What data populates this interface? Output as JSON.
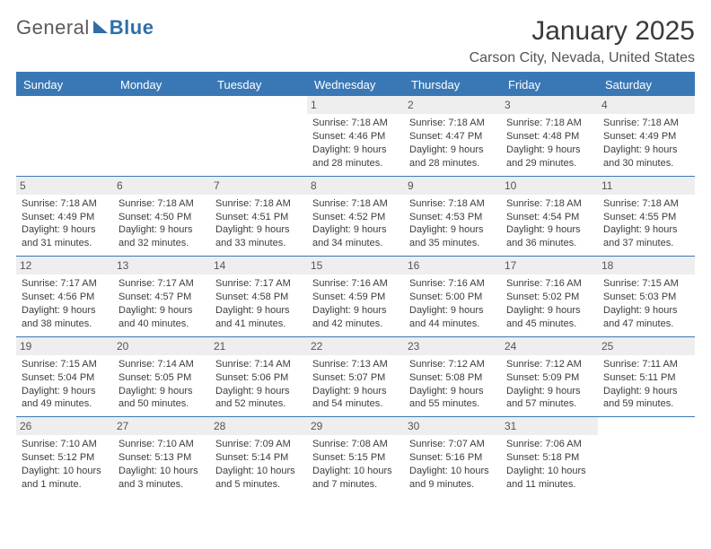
{
  "logo": {
    "part_a": "General",
    "part_b": "Blue"
  },
  "title": "January 2025",
  "location": "Carson City, Nevada, United States",
  "colors": {
    "header_bg": "#3a78b5",
    "header_text": "#ffffff",
    "daynum_bg": "#eeeeee",
    "rule": "#3a78b5",
    "text": "#3c3c3c",
    "logo_gray": "#5a5a5a",
    "logo_blue": "#2f6fa8"
  },
  "day_headers": [
    "Sunday",
    "Monday",
    "Tuesday",
    "Wednesday",
    "Thursday",
    "Friday",
    "Saturday"
  ],
  "weeks": [
    [
      {
        "num": "",
        "lines": []
      },
      {
        "num": "",
        "lines": []
      },
      {
        "num": "",
        "lines": []
      },
      {
        "num": "1",
        "lines": [
          "Sunrise: 7:18 AM",
          "Sunset: 4:46 PM",
          "Daylight: 9 hours and 28 minutes."
        ]
      },
      {
        "num": "2",
        "lines": [
          "Sunrise: 7:18 AM",
          "Sunset: 4:47 PM",
          "Daylight: 9 hours and 28 minutes."
        ]
      },
      {
        "num": "3",
        "lines": [
          "Sunrise: 7:18 AM",
          "Sunset: 4:48 PM",
          "Daylight: 9 hours and 29 minutes."
        ]
      },
      {
        "num": "4",
        "lines": [
          "Sunrise: 7:18 AM",
          "Sunset: 4:49 PM",
          "Daylight: 9 hours and 30 minutes."
        ]
      }
    ],
    [
      {
        "num": "5",
        "lines": [
          "Sunrise: 7:18 AM",
          "Sunset: 4:49 PM",
          "Daylight: 9 hours and 31 minutes."
        ]
      },
      {
        "num": "6",
        "lines": [
          "Sunrise: 7:18 AM",
          "Sunset: 4:50 PM",
          "Daylight: 9 hours and 32 minutes."
        ]
      },
      {
        "num": "7",
        "lines": [
          "Sunrise: 7:18 AM",
          "Sunset: 4:51 PM",
          "Daylight: 9 hours and 33 minutes."
        ]
      },
      {
        "num": "8",
        "lines": [
          "Sunrise: 7:18 AM",
          "Sunset: 4:52 PM",
          "Daylight: 9 hours and 34 minutes."
        ]
      },
      {
        "num": "9",
        "lines": [
          "Sunrise: 7:18 AM",
          "Sunset: 4:53 PM",
          "Daylight: 9 hours and 35 minutes."
        ]
      },
      {
        "num": "10",
        "lines": [
          "Sunrise: 7:18 AM",
          "Sunset: 4:54 PM",
          "Daylight: 9 hours and 36 minutes."
        ]
      },
      {
        "num": "11",
        "lines": [
          "Sunrise: 7:18 AM",
          "Sunset: 4:55 PM",
          "Daylight: 9 hours and 37 minutes."
        ]
      }
    ],
    [
      {
        "num": "12",
        "lines": [
          "Sunrise: 7:17 AM",
          "Sunset: 4:56 PM",
          "Daylight: 9 hours and 38 minutes."
        ]
      },
      {
        "num": "13",
        "lines": [
          "Sunrise: 7:17 AM",
          "Sunset: 4:57 PM",
          "Daylight: 9 hours and 40 minutes."
        ]
      },
      {
        "num": "14",
        "lines": [
          "Sunrise: 7:17 AM",
          "Sunset: 4:58 PM",
          "Daylight: 9 hours and 41 minutes."
        ]
      },
      {
        "num": "15",
        "lines": [
          "Sunrise: 7:16 AM",
          "Sunset: 4:59 PM",
          "Daylight: 9 hours and 42 minutes."
        ]
      },
      {
        "num": "16",
        "lines": [
          "Sunrise: 7:16 AM",
          "Sunset: 5:00 PM",
          "Daylight: 9 hours and 44 minutes."
        ]
      },
      {
        "num": "17",
        "lines": [
          "Sunrise: 7:16 AM",
          "Sunset: 5:02 PM",
          "Daylight: 9 hours and 45 minutes."
        ]
      },
      {
        "num": "18",
        "lines": [
          "Sunrise: 7:15 AM",
          "Sunset: 5:03 PM",
          "Daylight: 9 hours and 47 minutes."
        ]
      }
    ],
    [
      {
        "num": "19",
        "lines": [
          "Sunrise: 7:15 AM",
          "Sunset: 5:04 PM",
          "Daylight: 9 hours and 49 minutes."
        ]
      },
      {
        "num": "20",
        "lines": [
          "Sunrise: 7:14 AM",
          "Sunset: 5:05 PM",
          "Daylight: 9 hours and 50 minutes."
        ]
      },
      {
        "num": "21",
        "lines": [
          "Sunrise: 7:14 AM",
          "Sunset: 5:06 PM",
          "Daylight: 9 hours and 52 minutes."
        ]
      },
      {
        "num": "22",
        "lines": [
          "Sunrise: 7:13 AM",
          "Sunset: 5:07 PM",
          "Daylight: 9 hours and 54 minutes."
        ]
      },
      {
        "num": "23",
        "lines": [
          "Sunrise: 7:12 AM",
          "Sunset: 5:08 PM",
          "Daylight: 9 hours and 55 minutes."
        ]
      },
      {
        "num": "24",
        "lines": [
          "Sunrise: 7:12 AM",
          "Sunset: 5:09 PM",
          "Daylight: 9 hours and 57 minutes."
        ]
      },
      {
        "num": "25",
        "lines": [
          "Sunrise: 7:11 AM",
          "Sunset: 5:11 PM",
          "Daylight: 9 hours and 59 minutes."
        ]
      }
    ],
    [
      {
        "num": "26",
        "lines": [
          "Sunrise: 7:10 AM",
          "Sunset: 5:12 PM",
          "Daylight: 10 hours and 1 minute."
        ]
      },
      {
        "num": "27",
        "lines": [
          "Sunrise: 7:10 AM",
          "Sunset: 5:13 PM",
          "Daylight: 10 hours and 3 minutes."
        ]
      },
      {
        "num": "28",
        "lines": [
          "Sunrise: 7:09 AM",
          "Sunset: 5:14 PM",
          "Daylight: 10 hours and 5 minutes."
        ]
      },
      {
        "num": "29",
        "lines": [
          "Sunrise: 7:08 AM",
          "Sunset: 5:15 PM",
          "Daylight: 10 hours and 7 minutes."
        ]
      },
      {
        "num": "30",
        "lines": [
          "Sunrise: 7:07 AM",
          "Sunset: 5:16 PM",
          "Daylight: 10 hours and 9 minutes."
        ]
      },
      {
        "num": "31",
        "lines": [
          "Sunrise: 7:06 AM",
          "Sunset: 5:18 PM",
          "Daylight: 10 hours and 11 minutes."
        ]
      },
      {
        "num": "",
        "lines": []
      }
    ]
  ]
}
